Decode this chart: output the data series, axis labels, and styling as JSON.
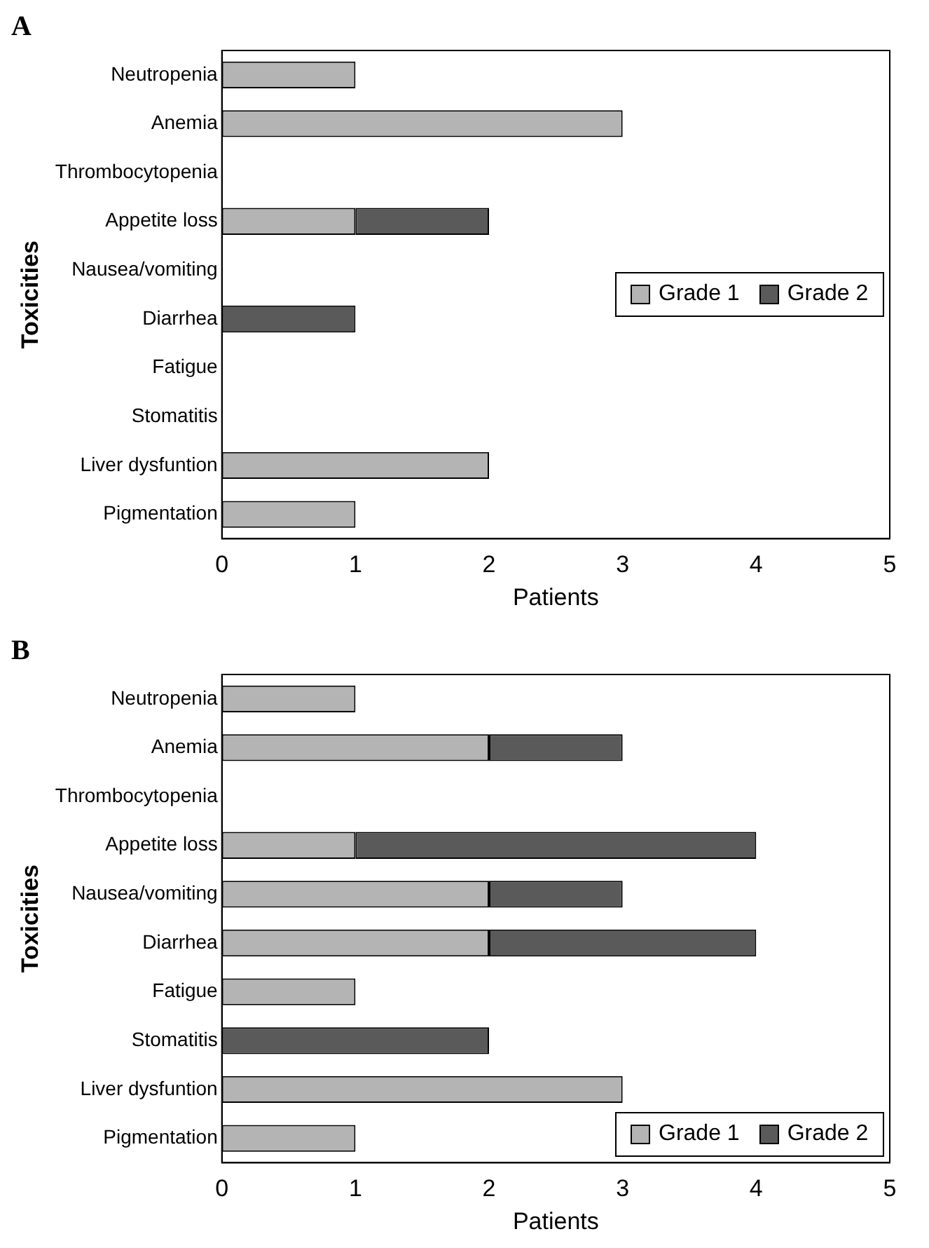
{
  "chart_data": [
    {
      "type": "bar",
      "title": "A",
      "orientation": "horizontal",
      "stacked": true,
      "xlabel": "Patients",
      "ylabel": "Toxicities",
      "categories": [
        "Neutropenia",
        "Anemia",
        "Thrombocytopenia",
        "Appetite loss",
        "Nausea/vomiting",
        "Diarrhea",
        "Fatigue",
        "Stomatitis",
        "Liver dysfuntion",
        "Pigmentation"
      ],
      "series": [
        {
          "name": "Grade 1",
          "color": "#b4b4b4",
          "values": [
            1,
            3,
            0,
            1,
            0,
            0,
            0,
            0,
            2,
            1
          ]
        },
        {
          "name": "Grade 2",
          "color": "#5a5a5a",
          "values": [
            0,
            0,
            0,
            1,
            0,
            1,
            0,
            0,
            0,
            0
          ]
        }
      ],
      "xlim": [
        0,
        5
      ],
      "xticks": [
        0,
        1,
        2,
        3,
        4,
        5
      ],
      "grid": false,
      "legend": "right"
    },
    {
      "type": "bar",
      "title": "B",
      "orientation": "horizontal",
      "stacked": true,
      "xlabel": "Patients",
      "ylabel": "Toxicities",
      "categories": [
        "Neutropenia",
        "Anemia",
        "Thrombocytopenia",
        "Appetite loss",
        "Nausea/vomiting",
        "Diarrhea",
        "Fatigue",
        "Stomatitis",
        "Liver dysfuntion",
        "Pigmentation"
      ],
      "series": [
        {
          "name": "Grade 1",
          "color": "#b4b4b4",
          "values": [
            1,
            2,
            0,
            1,
            2,
            2,
            1,
            0,
            3,
            1
          ]
        },
        {
          "name": "Grade 2",
          "color": "#5a5a5a",
          "values": [
            0,
            1,
            0,
            3,
            1,
            2,
            0,
            2,
            0,
            0
          ]
        }
      ],
      "xlim": [
        0,
        5
      ],
      "xticks": [
        0,
        1,
        2,
        3,
        4,
        5
      ],
      "grid": false,
      "legend": "bottom right"
    }
  ]
}
